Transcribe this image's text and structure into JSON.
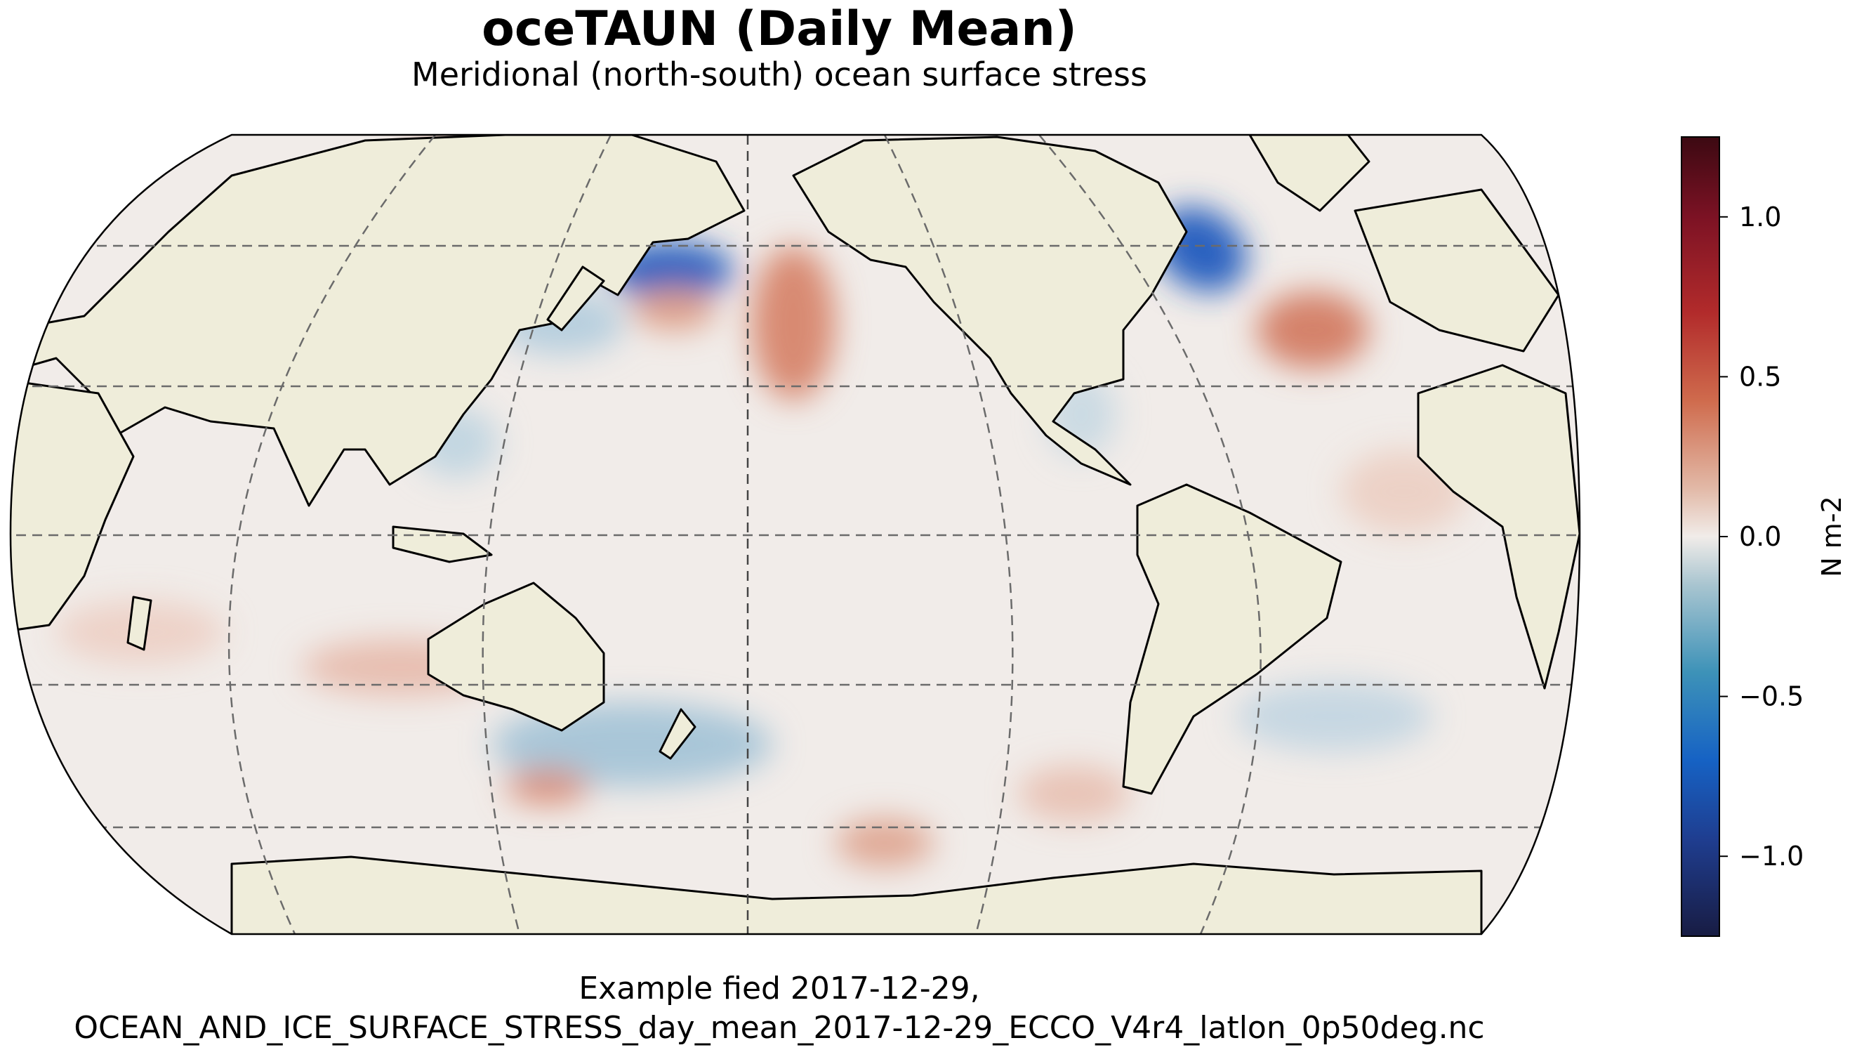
{
  "title": "oceTAUN (Daily Mean)",
  "subtitle": "Meridional (north-south) ocean surface stress",
  "caption": {
    "line1": "Example fied 2017-12-29,",
    "line2": "OCEAN_AND_ICE_SURFACE_STRESS_day_mean_2017-12-29_ECCO_V4r4_latlon_0p50deg.nc"
  },
  "map": {
    "projection": "Robinson",
    "central_longitude": 180,
    "gridlines": {
      "style": "dashed",
      "meridians": [
        -120,
        -60,
        0,
        60,
        120,
        180
      ],
      "parallels": [
        -60,
        -30,
        0,
        30,
        60
      ]
    },
    "colors": {
      "land": "#efedda",
      "ocean_neutral": "#f1ece9",
      "coast": "#000000"
    }
  },
  "colorbar": {
    "label": "N m-2",
    "min": -1.25,
    "max": 1.25,
    "colormap": "balance (blue-white-red)",
    "ticks": [
      {
        "value": 1.0,
        "label": "1.0"
      },
      {
        "value": 0.5,
        "label": "0.5"
      },
      {
        "value": 0.0,
        "label": "0.0"
      },
      {
        "value": -0.5,
        "label": "−0.5"
      },
      {
        "value": -1.0,
        "label": "−1.0"
      }
    ]
  }
}
